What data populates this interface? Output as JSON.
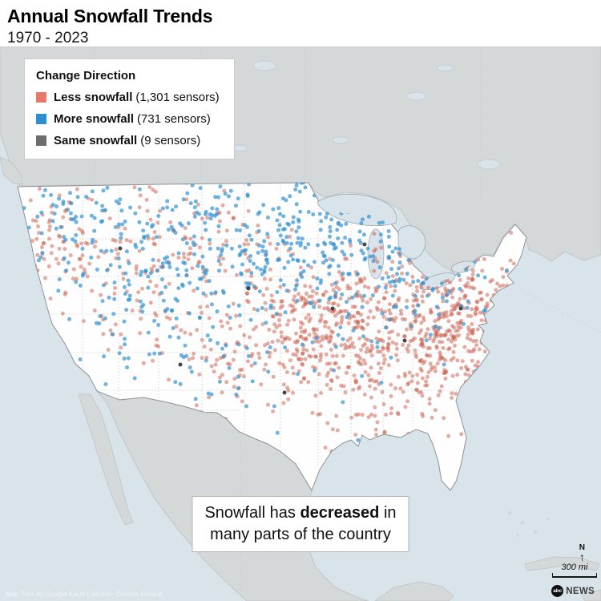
{
  "header": {
    "title": "Annual Snowfall Trends",
    "subtitle": "1970 - 2023"
  },
  "legend": {
    "title": "Change Direction",
    "items": [
      {
        "key": "less",
        "label": "Less snowfall",
        "sensors": "(1,301 sensors)",
        "count": 1301,
        "color": "#e8796a"
      },
      {
        "key": "more",
        "label": "More snowfall",
        "sensors": "(731 sensors)",
        "count": 731,
        "color": "#2e8fd0"
      },
      {
        "key": "same",
        "label": "Same snowfall",
        "sensors": "(9 sensors)",
        "count": 9,
        "color": "#6d6d6d"
      }
    ]
  },
  "caption": {
    "pre": "Snowfall has ",
    "bold": "decreased",
    "post": " in",
    "line2": "many parts of the country"
  },
  "compass": {
    "north": "N"
  },
  "scale": {
    "label": "300 mi"
  },
  "footer": {
    "attribution": "Map Tiles by Google Earth | Source: Climate Central",
    "logo_abc": "abc",
    "logo_news": "NEWS"
  },
  "chart_data": {
    "type": "scatter",
    "title": "Annual Snowfall Trends",
    "subtitle": "1970 - 2023",
    "legend_title": "Change Direction",
    "series": [
      {
        "name": "Less snowfall",
        "count": 1301,
        "color": "#e8796a"
      },
      {
        "name": "More snowfall",
        "count": 731,
        "color": "#2e8fd0"
      },
      {
        "name": "Same snowfall",
        "count": 9,
        "color": "#6d6d6d"
      }
    ],
    "annotation": "Snowfall has decreased in many parts of the country",
    "scale_bar": "300 mi"
  }
}
